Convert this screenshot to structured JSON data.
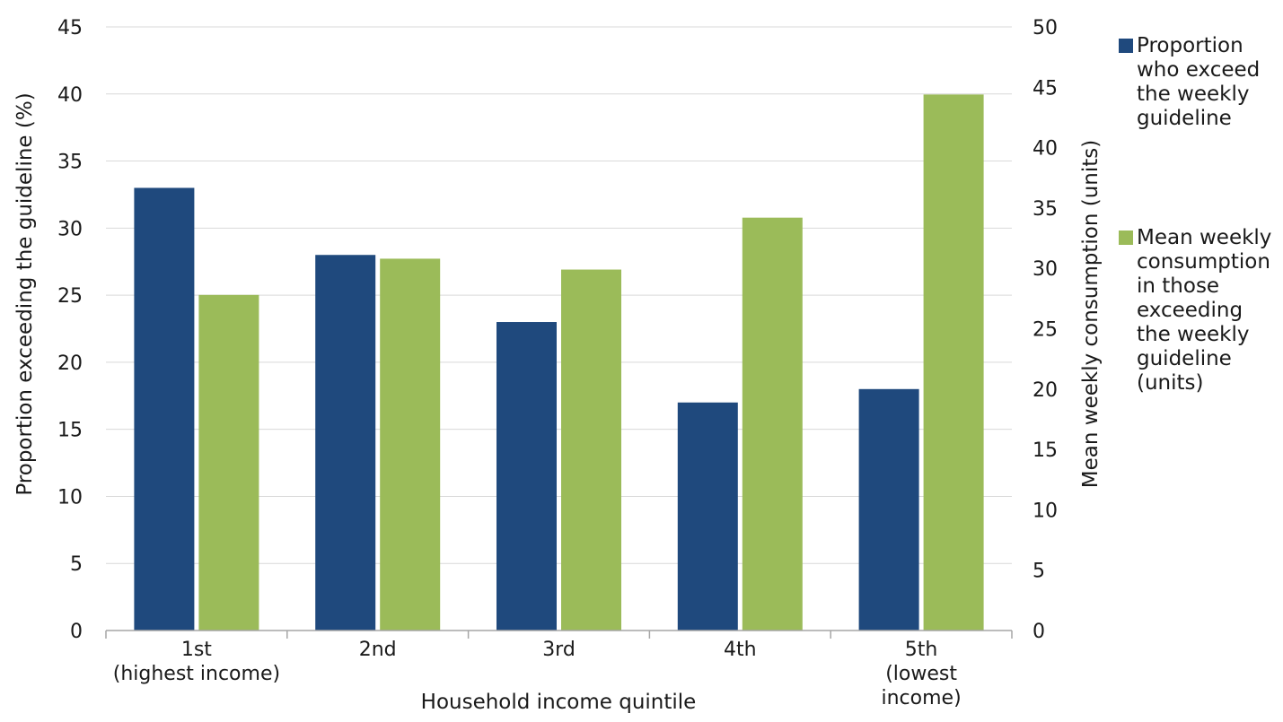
{
  "chart_data": {
    "type": "bar",
    "categories": [
      [
        "1st",
        "(highest income)"
      ],
      [
        "2nd"
      ],
      [
        "3rd"
      ],
      [
        "4th"
      ],
      [
        "5th",
        "(lowest",
        "income)"
      ]
    ],
    "xlabel": "Household income quintile",
    "ylabel_left": "Proportion exceeding the guideline (%)",
    "ylabel_right": "Mean weekly consumption (units)",
    "ylim_left": [
      0,
      45
    ],
    "yticks_left": [
      0,
      5,
      10,
      15,
      20,
      25,
      30,
      35,
      40,
      45
    ],
    "ylim_right": [
      0,
      50
    ],
    "yticks_right": [
      0,
      5,
      10,
      15,
      20,
      25,
      30,
      35,
      40,
      45,
      50
    ],
    "grid": true,
    "legend_position": "right",
    "series": [
      {
        "name": "Proportion who exceed the weekly guideline",
        "legend_lines": [
          "Proportion",
          "who exceed",
          "the weekly",
          "guideline"
        ],
        "axis": "left",
        "color": "#1f497d",
        "values": [
          33,
          28,
          23,
          17,
          18
        ]
      },
      {
        "name": "Mean weekly consumption in those exceeding the weekly guideline (units)",
        "legend_lines": [
          "Mean weekly",
          "consumption",
          "in those",
          "exceeding",
          "the weekly",
          "guideline",
          "(units)"
        ],
        "axis": "right",
        "color": "#9bbb59",
        "values": [
          27.8,
          30.8,
          29.9,
          34.2,
          44.4
        ]
      }
    ]
  }
}
